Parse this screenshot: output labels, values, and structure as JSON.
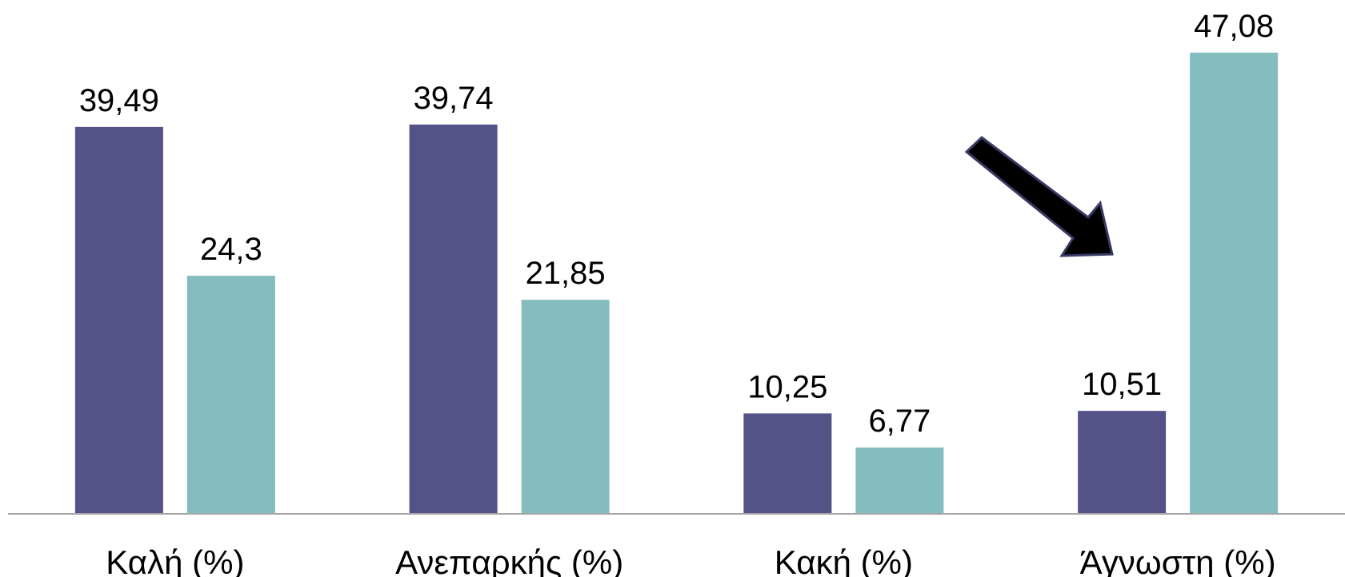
{
  "chart_data": {
    "type": "bar",
    "categories": [
      "Καλή (%)",
      "Ανεπαρκής (%)",
      "Κακή (%)",
      "Άγνωστη (%)"
    ],
    "series": [
      {
        "color": "#545287",
        "values": [
          39.49,
          39.74,
          10.25,
          10.51
        ],
        "value_labels": [
          "39,49",
          "39,74",
          "10,25",
          "10,51"
        ]
      },
      {
        "color": "#84bdc0",
        "values": [
          24.3,
          21.85,
          6.77,
          47.08
        ],
        "value_labels": [
          "24,3",
          "21,85",
          "6,77",
          "47,08"
        ]
      }
    ],
    "ylim": [
      0,
      50
    ]
  }
}
